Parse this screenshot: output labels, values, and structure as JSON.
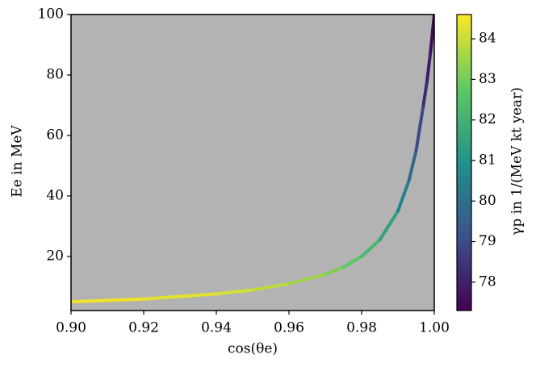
{
  "chart_data": {
    "type": "line",
    "xlabel": "cos(θe)",
    "ylabel": "Ee in MeV",
    "colorbar_label": "γp in 1/(MeV kt year)",
    "colormap": "viridis",
    "x": [
      0.9,
      0.92,
      0.94,
      0.95,
      0.96,
      0.97,
      0.975,
      0.98,
      0.985,
      0.99,
      0.993,
      0.995,
      0.997,
      0.998,
      0.999,
      1.0
    ],
    "series": [
      {
        "values": [
          5.0,
          5.9,
          7.6,
          8.9,
          11,
          14,
          16.5,
          20,
          25.5,
          35,
          45,
          55,
          70,
          78,
          88,
          100
        ],
        "color_values": [
          84.5,
          84.4,
          84.2,
          84.0,
          83.7,
          83.3,
          83.0,
          82.5,
          81.9,
          80.9,
          80.1,
          79.4,
          78.5,
          78.1,
          77.7,
          77.3
        ]
      }
    ],
    "xlim": [
      0.9,
      1.0
    ],
    "xticks": [
      {
        "value": 0.9,
        "label": "0.90"
      },
      {
        "value": 0.92,
        "label": "0.92"
      },
      {
        "value": 0.94,
        "label": "0.94"
      },
      {
        "value": 0.96,
        "label": "0.96"
      },
      {
        "value": 0.98,
        "label": "0.98"
      },
      {
        "value": 1.0,
        "label": "1.00"
      }
    ],
    "ylim": [
      2.1,
      100
    ],
    "yticks": [
      20,
      40,
      60,
      80,
      100
    ],
    "clim": [
      77.3,
      84.6
    ],
    "cticks": [
      78,
      79,
      80,
      81,
      82,
      83,
      84
    ],
    "plot_background": "#b3b3b3"
  }
}
